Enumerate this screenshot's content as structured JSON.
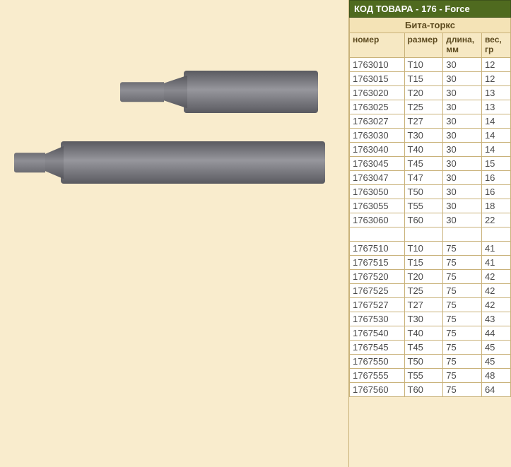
{
  "header": {
    "title": "КОД ТОВАРА - 176 - Force",
    "subtitle": "Бита-торкс"
  },
  "table": {
    "columns": [
      "номер",
      "размер",
      "длина, мм",
      "вес, гр"
    ],
    "column_widths": [
      "34%",
      "24%",
      "24%",
      "18%"
    ],
    "rows": [
      [
        "1763010",
        "T10",
        "30",
        "12"
      ],
      [
        "1763015",
        "T15",
        "30",
        "12"
      ],
      [
        "1763020",
        "T20",
        "30",
        "13"
      ],
      [
        "1763025",
        "T25",
        "30",
        "13"
      ],
      [
        "1763027",
        "T27",
        "30",
        "14"
      ],
      [
        "1763030",
        "T30",
        "30",
        "14"
      ],
      [
        "1763040",
        "T40",
        "30",
        "14"
      ],
      [
        "1763045",
        "T45",
        "30",
        "15"
      ],
      [
        "1763047",
        "T47",
        "30",
        "16"
      ],
      [
        "1763050",
        "T50",
        "30",
        "16"
      ],
      [
        "1763055",
        "T55",
        "30",
        "18"
      ],
      [
        "1763060",
        "T60",
        "30",
        "22"
      ],
      [
        "",
        "",
        "",
        ""
      ],
      [
        "1767510",
        "T10",
        "75",
        "41"
      ],
      [
        "1767515",
        "T15",
        "75",
        "41"
      ],
      [
        "1767520",
        "T20",
        "75",
        "42"
      ],
      [
        "1767525",
        "T25",
        "75",
        "42"
      ],
      [
        "1767527",
        "T27",
        "75",
        "42"
      ],
      [
        "1767530",
        "T30",
        "75",
        "43"
      ],
      [
        "1767540",
        "T40",
        "75",
        "44"
      ],
      [
        "1767545",
        "T45",
        "75",
        "45"
      ],
      [
        "1767550",
        "T50",
        "75",
        "45"
      ],
      [
        "1767555",
        "T55",
        "75",
        "48"
      ],
      [
        "1767560",
        "T60",
        "75",
        "64"
      ]
    ]
  },
  "colors": {
    "page_bg": "#f9eccd",
    "header_bg": "#4f6a1f",
    "header_fg": "#ffffff",
    "cell_border": "#c9b27a",
    "cell_bg": "#ffffff",
    "colhead_bg": "#f6e8c3",
    "colhead_fg": "#5c4a1f"
  }
}
